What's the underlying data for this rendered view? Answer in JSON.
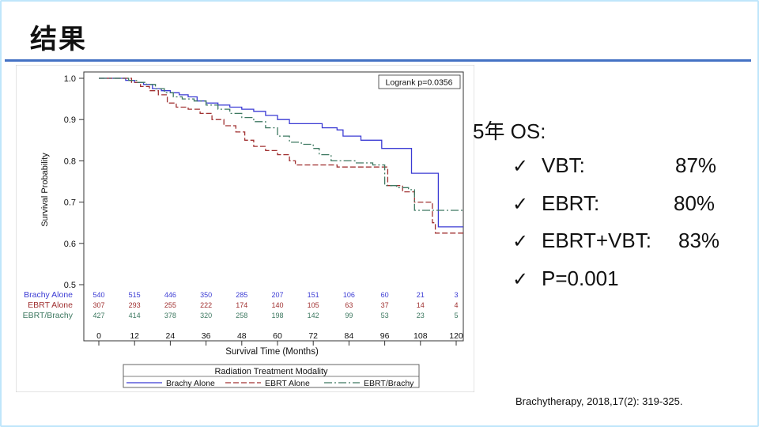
{
  "slide": {
    "title": "结果",
    "os_heading": "5年 OS:",
    "bullets": [
      {
        "label": "VBT:",
        "value": "87%"
      },
      {
        "label": "EBRT:",
        "value": "80%"
      },
      {
        "label": "EBRT+VBT:",
        "value": "83%"
      },
      {
        "label": "P=0.001",
        "value": ""
      }
    ],
    "citation": "Brachytherapy,  2018,17(2): 319-325.",
    "icon": "check-icon"
  },
  "chart_data": {
    "type": "line",
    "step": true,
    "ylabel": "Survival Probability",
    "xlabel": "Survival Time (Months)",
    "x_ticks": [
      0,
      12,
      24,
      36,
      48,
      60,
      72,
      84,
      96,
      108,
      120
    ],
    "y_ticks": [
      "0.5",
      "0.6",
      "0.7",
      "0.8",
      "0.9",
      "1.0"
    ],
    "ylim": [
      0.5,
      1.0
    ],
    "xlim": [
      0,
      120
    ],
    "annotation": "Logrank p=0.0356",
    "legend_title": "Radiation Treatment Modality",
    "legend_position": "bottom",
    "series": [
      {
        "name": "Brachy Alone",
        "color": "#3b3bd4",
        "dash": "",
        "points": [
          [
            0,
            1.0
          ],
          [
            6,
            1.0
          ],
          [
            9,
            0.995
          ],
          [
            12,
            0.99
          ],
          [
            15,
            0.985
          ],
          [
            18,
            0.975
          ],
          [
            21,
            0.97
          ],
          [
            24,
            0.965
          ],
          [
            27,
            0.96
          ],
          [
            30,
            0.955
          ],
          [
            33,
            0.945
          ],
          [
            36,
            0.94
          ],
          [
            40,
            0.935
          ],
          [
            44,
            0.93
          ],
          [
            48,
            0.925
          ],
          [
            52,
            0.92
          ],
          [
            56,
            0.91
          ],
          [
            60,
            0.9
          ],
          [
            64,
            0.89
          ],
          [
            70,
            0.89
          ],
          [
            75,
            0.88
          ],
          [
            80,
            0.875
          ],
          [
            82,
            0.86
          ],
          [
            88,
            0.85
          ],
          [
            95,
            0.83
          ],
          [
            103,
            0.83
          ],
          [
            105,
            0.77
          ],
          [
            112,
            0.77
          ],
          [
            114,
            0.64
          ],
          [
            124,
            0.64
          ]
        ],
        "at_risk": [
          540,
          515,
          446,
          350,
          285,
          207,
          151,
          106,
          60,
          21,
          3
        ]
      },
      {
        "name": "EBRT Alone",
        "color": "#a03030",
        "dash": "7 3",
        "points": [
          [
            0,
            1.0
          ],
          [
            8,
            1.0
          ],
          [
            11,
            0.99
          ],
          [
            14,
            0.98
          ],
          [
            17,
            0.97
          ],
          [
            20,
            0.96
          ],
          [
            23,
            0.94
          ],
          [
            26,
            0.93
          ],
          [
            30,
            0.925
          ],
          [
            34,
            0.915
          ],
          [
            38,
            0.9
          ],
          [
            42,
            0.885
          ],
          [
            46,
            0.87
          ],
          [
            49,
            0.85
          ],
          [
            52,
            0.835
          ],
          [
            56,
            0.825
          ],
          [
            60,
            0.815
          ],
          [
            64,
            0.8
          ],
          [
            66,
            0.79
          ],
          [
            76,
            0.79
          ],
          [
            80,
            0.785
          ],
          [
            88,
            0.785
          ],
          [
            96,
            0.785
          ],
          [
            97,
            0.74
          ],
          [
            102,
            0.725
          ],
          [
            106,
            0.7
          ],
          [
            112,
            0.65
          ],
          [
            113,
            0.625
          ],
          [
            124,
            0.625
          ]
        ],
        "at_risk": [
          307,
          293,
          255,
          222,
          174,
          140,
          105,
          63,
          37,
          14,
          4
        ]
      },
      {
        "name": "EBRT/Brachy",
        "color": "#3d7860",
        "dash": "10 3 2 3",
        "points": [
          [
            0,
            1.0
          ],
          [
            7,
            1.0
          ],
          [
            10,
            0.995
          ],
          [
            13,
            0.99
          ],
          [
            16,
            0.985
          ],
          [
            19,
            0.975
          ],
          [
            22,
            0.965
          ],
          [
            25,
            0.955
          ],
          [
            28,
            0.95
          ],
          [
            32,
            0.945
          ],
          [
            36,
            0.935
          ],
          [
            40,
            0.925
          ],
          [
            44,
            0.915
          ],
          [
            48,
            0.905
          ],
          [
            52,
            0.895
          ],
          [
            56,
            0.88
          ],
          [
            60,
            0.86
          ],
          [
            64,
            0.845
          ],
          [
            68,
            0.84
          ],
          [
            72,
            0.83
          ],
          [
            74,
            0.815
          ],
          [
            78,
            0.8
          ],
          [
            82,
            0.8
          ],
          [
            86,
            0.795
          ],
          [
            92,
            0.79
          ],
          [
            96,
            0.74
          ],
          [
            100,
            0.735
          ],
          [
            104,
            0.73
          ],
          [
            106,
            0.68
          ],
          [
            124,
            0.68
          ]
        ],
        "at_risk": [
          427,
          414,
          378,
          320,
          258,
          198,
          142,
          99,
          53,
          23,
          5
        ]
      }
    ]
  }
}
